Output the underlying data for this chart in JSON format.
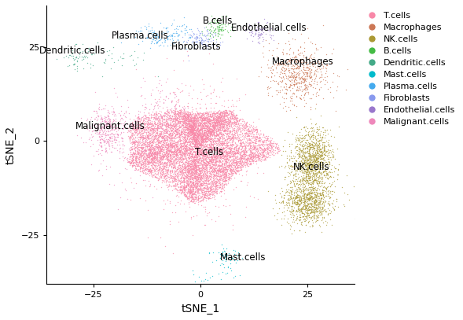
{
  "cell_types": [
    "T.cells",
    "Macrophages",
    "NK.cells",
    "B.cells",
    "Dendritic.cells",
    "Mast.cells",
    "Plasma.cells",
    "Fibroblasts",
    "Endothelial.cells",
    "Malignant.cells"
  ],
  "colors": {
    "T.cells": "#F888A8",
    "Macrophages": "#CC7755",
    "NK.cells": "#AA9933",
    "B.cells": "#44BB44",
    "Dendritic.cells": "#44AA88",
    "Mast.cells": "#00BBCC",
    "Plasma.cells": "#44AAEE",
    "Fibroblasts": "#8899EE",
    "Endothelial.cells": "#9977CC",
    "Malignant.cells": "#EE88BB"
  },
  "xlabel": "tSNE_1",
  "ylabel": "tSNE_2",
  "xlim": [
    -36,
    36
  ],
  "ylim": [
    -38,
    36
  ],
  "point_size": 1.0,
  "alpha": 0.7,
  "legend_fontsize": 8,
  "label_fontsize": 8.5,
  "axis_label_fontsize": 10,
  "label_positions": {
    "T.cells": [
      2,
      -3
    ],
    "Macrophages": [
      24,
      21
    ],
    "NK.cells": [
      26,
      -7
    ],
    "B.cells": [
      4,
      32
    ],
    "Dendritic.cells": [
      -30,
      24
    ],
    "Mast.cells": [
      10,
      -31
    ],
    "Plasma.cells": [
      -14,
      28
    ],
    "Fibroblasts": [
      -1,
      25
    ],
    "Endothelial.cells": [
      16,
      30
    ],
    "Malignant.cells": [
      -21,
      4
    ]
  }
}
